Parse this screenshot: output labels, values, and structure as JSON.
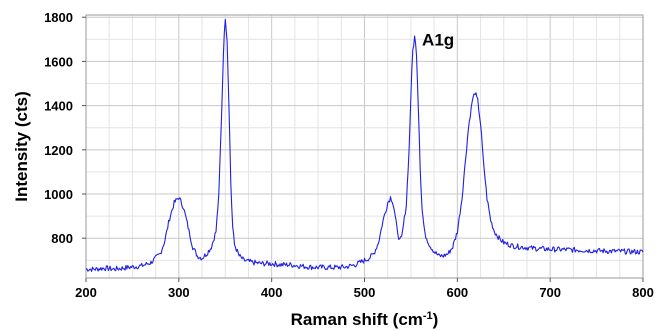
{
  "chart_data": {
    "type": "line",
    "xlabel": "Raman shift (cm",
    "xlabel_sup": "-1",
    "xlabel_tail": ")",
    "ylabel": "Intensity (cts)",
    "xlim": [
      200,
      800
    ],
    "ylim": [
      620,
      1810
    ],
    "x_ticks": [
      200,
      300,
      400,
      500,
      600,
      700,
      800
    ],
    "y_ticks": [
      800,
      1000,
      1200,
      1400,
      1600,
      1800
    ],
    "x_tick_labels": [
      "200",
      "300",
      "400",
      "500",
      "600",
      "700",
      "800"
    ],
    "y_tick_labels": [
      "800",
      "1000",
      "1200",
      "1400",
      "1600",
      "1800"
    ],
    "grid": true,
    "line_color": "#1f1fe6",
    "annotations": [
      {
        "text": "A1g",
        "x": 562,
        "y": 1700
      }
    ],
    "series": [
      {
        "x": [
          200,
          210,
          220,
          230,
          240,
          250,
          260,
          270,
          280,
          285,
          290,
          295,
          300,
          305,
          310,
          315,
          320,
          325,
          330,
          335,
          340,
          343,
          346,
          348,
          350,
          352,
          354,
          356,
          358,
          360,
          365,
          370,
          380,
          390,
          400,
          410,
          420,
          430,
          440,
          450,
          460,
          470,
          480,
          490,
          500,
          505,
          510,
          515,
          520,
          525,
          528,
          530,
          532,
          535,
          538,
          540,
          545,
          548,
          550,
          552,
          554,
          556,
          558,
          560,
          562,
          565,
          570,
          575,
          580,
          585,
          590,
          595,
          600,
          605,
          608,
          612,
          616,
          619,
          622,
          625,
          628,
          632,
          636,
          640,
          645,
          650,
          660,
          670,
          680,
          690,
          700,
          720,
          740,
          760,
          780,
          800
        ],
        "y": [
          660,
          660,
          665,
          660,
          665,
          670,
          675,
          690,
          730,
          790,
          890,
          960,
          985,
          940,
          850,
          760,
          720,
          710,
          730,
          760,
          830,
          990,
          1350,
          1640,
          1800,
          1700,
          1400,
          1050,
          850,
          770,
          720,
          700,
          690,
          685,
          685,
          680,
          680,
          675,
          670,
          668,
          668,
          668,
          670,
          680,
          700,
          710,
          730,
          780,
          880,
          960,
          985,
          970,
          930,
          840,
          790,
          800,
          950,
          1200,
          1450,
          1650,
          1710,
          1640,
          1400,
          1120,
          930,
          820,
          770,
          740,
          720,
          720,
          730,
          760,
          830,
          980,
          1120,
          1300,
          1420,
          1460,
          1420,
          1320,
          1150,
          980,
          880,
          830,
          800,
          780,
          765,
          760,
          755,
          752,
          750,
          748,
          745,
          742,
          740,
          738
        ]
      }
    ]
  }
}
